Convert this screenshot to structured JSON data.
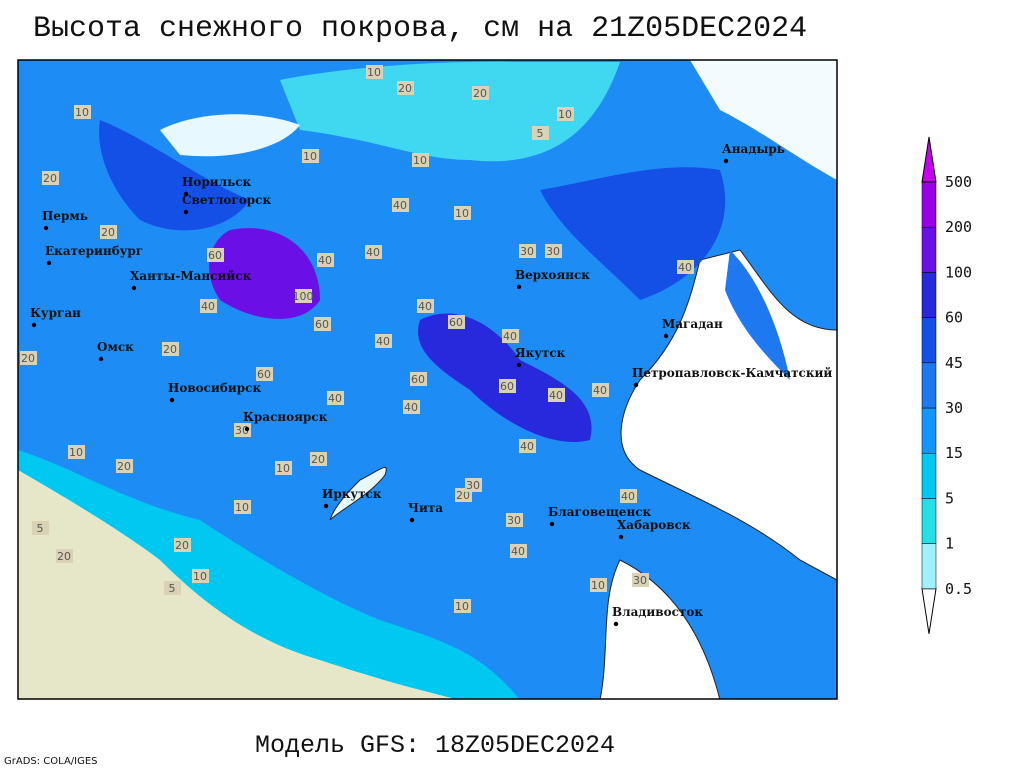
{
  "title": "Высота снежного покрова, см на 21Z05DEC2024",
  "subtitle": "Модель GFS: 18Z05DEC2024",
  "credit": "GrADS: COLA/IGES",
  "legend": {
    "levels": [
      0.5,
      1,
      5,
      15,
      30,
      45,
      60,
      100,
      200,
      500
    ],
    "colors": [
      "#ffffff",
      "#a0f0ff",
      "#22e0e6",
      "#00c8f0",
      "#1496ff",
      "#1e78f0",
      "#1450e6",
      "#2828dc",
      "#6a10e6",
      "#9a00e6",
      "#c800f0"
    ]
  },
  "cities": [
    "Анадырь",
    "Норильск",
    "Светлогорск",
    "Пермь",
    "Екатеринбург",
    "Ханты-Мансийск",
    "Курган",
    "Омск",
    "Новосибирск",
    "Красноярск",
    "Верхоянск",
    "Якутск",
    "Магадан",
    "Петропавловск-Камчатский",
    "Иркутск",
    "Чита",
    "Благовещенск",
    "Хабаровск",
    "Владивосток"
  ],
  "contour_labels": [
    10,
    20,
    20,
    10,
    5,
    10,
    20,
    10,
    40,
    10,
    20,
    40,
    10,
    30,
    30,
    40,
    60,
    40,
    40,
    40,
    100,
    60,
    40,
    60,
    40,
    60,
    60,
    60,
    40,
    20,
    20,
    10,
    20,
    40,
    30,
    20,
    10,
    20,
    40,
    30,
    40,
    30,
    10,
    10,
    5,
    20,
    40,
    30,
    40,
    40,
    10,
    20,
    5,
    10
  ]
}
